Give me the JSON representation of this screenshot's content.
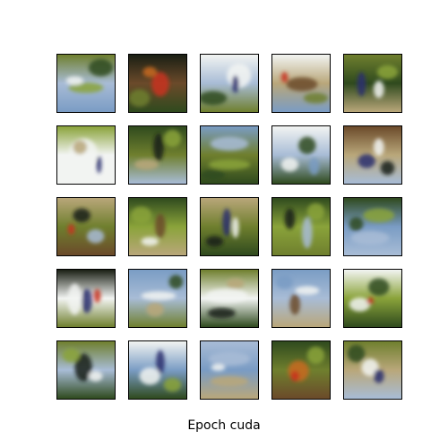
{
  "figure": {
    "caption": "Epoch cuda",
    "grid_rows": 5,
    "grid_cols": 5,
    "tile_count": 25,
    "content": "generated-image-samples"
  },
  "palette": {
    "sky_blue": "#7a9cc4",
    "pale_blue": "#a8bcd6",
    "dark_green": "#2f4a1e",
    "olive_green": "#6f7f2e",
    "bright_green": "#8aa33a",
    "tan": "#b9a77a",
    "brown": "#6b4a2a",
    "white": "#f2f4f2",
    "dark": "#1a1f14",
    "red": "#c8321e",
    "orange": "#c86a1e",
    "navy": "#2a2f6e"
  }
}
